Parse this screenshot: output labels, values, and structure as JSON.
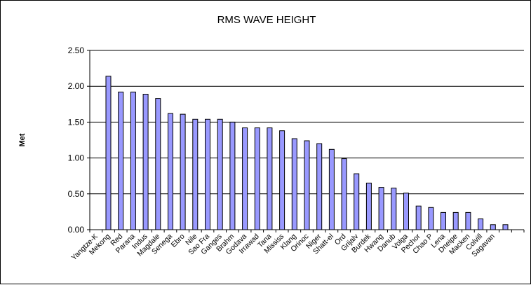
{
  "chart_data": {
    "type": "bar",
    "title": "RMS WAVE HEIGHT",
    "xlabel": "",
    "ylabel": "Met",
    "ylim": [
      0,
      2.5
    ],
    "yticks": [
      "0.00",
      "0.50",
      "1.00",
      "1.50",
      "2.00",
      "2.50"
    ],
    "grid": true,
    "bar_color": "#9999ff",
    "categories": [
      "Yangtze-K",
      "Mekong",
      "Red",
      "Parana",
      "Indus",
      "Magdale",
      "Senega",
      "Ebro",
      "Nile",
      "Sao Fra",
      "Ganges",
      "Brahm",
      "Godava",
      "Irrawad",
      "Tana",
      "Mississ",
      "Klang",
      "Orinoc",
      "Niger",
      "Shatt-el",
      "Ord",
      "Grijalv",
      "Burdek",
      "Hwang",
      "Danub",
      "Volga",
      "Pechor",
      "Chao P",
      "Lena",
      "Dneipe",
      "Macken",
      "Colvill",
      "Sagavan",
      "",
      ""
    ],
    "values": [
      null,
      2.14,
      1.92,
      1.92,
      1.89,
      1.83,
      1.62,
      1.61,
      1.54,
      1.54,
      1.54,
      1.5,
      1.42,
      1.42,
      1.42,
      1.38,
      1.27,
      1.24,
      1.2,
      1.12,
      0.99,
      0.78,
      0.65,
      0.59,
      0.58,
      0.51,
      0.33,
      0.31,
      0.24,
      0.24,
      0.24,
      0.15,
      0.07,
      0.07,
      null
    ]
  }
}
